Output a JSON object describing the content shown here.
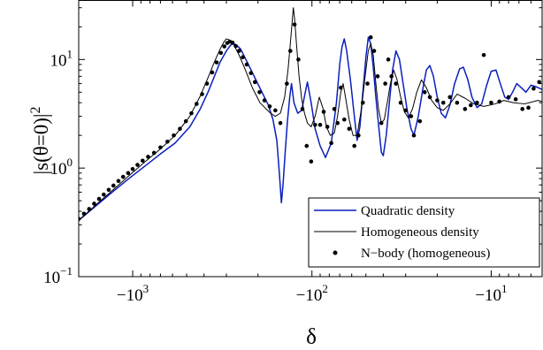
{
  "chart_data": {
    "type": "line",
    "title": "",
    "xlabel": "δ",
    "ylabel": "|s(θ=0)|",
    "ylabel_superscript": "2",
    "x_scale": "log-negative",
    "y_scale": "log",
    "xlim": [
      -2000,
      -5.2
    ],
    "ylim": [
      0.1,
      35
    ],
    "x_ticks": [
      {
        "value": -1000,
        "base": "−10",
        "exp": "3"
      },
      {
        "value": -100,
        "base": "−10",
        "exp": "2"
      },
      {
        "value": -10,
        "base": "−10",
        "exp": "1"
      }
    ],
    "y_ticks": [
      {
        "value": 0.1,
        "base": "10",
        "exp": "−1"
      },
      {
        "value": 1,
        "base": "10",
        "exp": "0"
      },
      {
        "value": 10,
        "base": "10",
        "exp": "1"
      }
    ],
    "legend_position": "bottom-right",
    "grid": false,
    "series": [
      {
        "name": "Quadratic density",
        "style": "line",
        "color": "#0a1fbd",
        "points": [
          [
            -2000,
            0.33
          ],
          [
            -1600,
            0.45
          ],
          [
            -1300,
            0.6
          ],
          [
            -1050,
            0.8
          ],
          [
            -850,
            1.05
          ],
          [
            -700,
            1.35
          ],
          [
            -580,
            1.7
          ],
          [
            -480,
            2.4
          ],
          [
            -420,
            3.5
          ],
          [
            -380,
            5.0
          ],
          [
            -350,
            7.0
          ],
          [
            -325,
            9.5
          ],
          [
            -300,
            12.0
          ],
          [
            -285,
            13.5
          ],
          [
            -275,
            14.0
          ],
          [
            -265,
            13.7
          ],
          [
            -250,
            12.5
          ],
          [
            -230,
            9.5
          ],
          [
            -210,
            7.0
          ],
          [
            -190,
            5.0
          ],
          [
            -175,
            3.8
          ],
          [
            -165,
            2.8
          ],
          [
            -157,
            1.8
          ],
          [
            -152,
            0.9
          ],
          [
            -148,
            0.48
          ],
          [
            -145,
            0.7
          ],
          [
            -141,
            1.4
          ],
          [
            -137,
            2.7
          ],
          [
            -133,
            4.5
          ],
          [
            -130,
            6.0
          ],
          [
            -126,
            4.0
          ],
          [
            -120,
            3.2
          ],
          [
            -114,
            3.4
          ],
          [
            -110,
            4.6
          ],
          [
            -106,
            6.2
          ],
          [
            -101,
            4.0
          ],
          [
            -96,
            2.3
          ],
          [
            -90,
            1.6
          ],
          [
            -84,
            1.25
          ],
          [
            -78,
            1.7
          ],
          [
            -73,
            4.0
          ],
          [
            -70,
            9.0
          ],
          [
            -68,
            13.0
          ],
          [
            -66,
            15.5
          ],
          [
            -64,
            12.0
          ],
          [
            -61,
            6.5
          ],
          [
            -58,
            3.0
          ],
          [
            -56,
            1.8
          ],
          [
            -54,
            2.4
          ],
          [
            -52,
            5.0
          ],
          [
            -50,
            10.5
          ],
          [
            -48.5,
            16.0
          ],
          [
            -47,
            14.0
          ],
          [
            -45.5,
            8.5
          ],
          [
            -44,
            4.5
          ],
          [
            -42.5,
            2.5
          ],
          [
            -41,
            1.4
          ],
          [
            -40,
            1.3
          ],
          [
            -38.5,
            2.0
          ],
          [
            -37,
            4.0
          ],
          [
            -35.5,
            8.0
          ],
          [
            -34,
            12.0
          ],
          [
            -32.5,
            10.0
          ],
          [
            -31,
            6.0
          ],
          [
            -29.5,
            3.5
          ],
          [
            -28,
            2.3
          ],
          [
            -27,
            2.0
          ],
          [
            -25.5,
            3.0
          ],
          [
            -24,
            5.5
          ],
          [
            -23,
            8.0
          ],
          [
            -22,
            8.8
          ],
          [
            -21,
            7.0
          ],
          [
            -20,
            4.5
          ],
          [
            -19,
            3.2
          ],
          [
            -18,
            2.9
          ],
          [
            -17,
            3.8
          ],
          [
            -16,
            6.0
          ],
          [
            -15,
            8.2
          ],
          [
            -14.3,
            8.5
          ],
          [
            -13.5,
            6.5
          ],
          [
            -12.8,
            4.5
          ],
          [
            -12,
            3.6
          ],
          [
            -11.3,
            3.9
          ],
          [
            -10.6,
            5.8
          ],
          [
            -10,
            7.8
          ],
          [
            -9.4,
            8.0
          ],
          [
            -8.9,
            6.0
          ],
          [
            -8.4,
            4.5
          ],
          [
            -8,
            4.3
          ],
          [
            -7.6,
            5.0
          ],
          [
            -7.2,
            6.0
          ],
          [
            -6.8,
            5.5
          ],
          [
            -6.4,
            5.0
          ],
          [
            -6,
            5.8
          ],
          [
            -5.6,
            5.6
          ],
          [
            -5.2,
            5.3
          ]
        ]
      },
      {
        "name": "Homogeneous density",
        "style": "line",
        "color": "#000000",
        "points": [
          [
            -2000,
            0.33
          ],
          [
            -1600,
            0.46
          ],
          [
            -1300,
            0.62
          ],
          [
            -1050,
            0.85
          ],
          [
            -850,
            1.15
          ],
          [
            -700,
            1.5
          ],
          [
            -580,
            2.0
          ],
          [
            -480,
            3.0
          ],
          [
            -420,
            4.6
          ],
          [
            -380,
            6.8
          ],
          [
            -350,
            9.5
          ],
          [
            -325,
            12.5
          ],
          [
            -310,
            14.5
          ],
          [
            -300,
            15.5
          ],
          [
            -290,
            15.2
          ],
          [
            -275,
            14.0
          ],
          [
            -255,
            11.0
          ],
          [
            -235,
            8.0
          ],
          [
            -215,
            5.5
          ],
          [
            -195,
            4.0
          ],
          [
            -180,
            3.5
          ],
          [
            -170,
            3.2
          ],
          [
            -160,
            3.0
          ],
          [
            -150,
            3.2
          ],
          [
            -142,
            4.5
          ],
          [
            -136,
            8.0
          ],
          [
            -132,
            14.0
          ],
          [
            -129,
            22.0
          ],
          [
            -127,
            30.0
          ],
          [
            -125,
            24.0
          ],
          [
            -122,
            14.0
          ],
          [
            -118,
            7.0
          ],
          [
            -114,
            4.3
          ],
          [
            -110,
            3.2
          ],
          [
            -106,
            2.6
          ],
          [
            -101,
            2.4
          ],
          [
            -96,
            3.0
          ],
          [
            -91,
            4.5
          ],
          [
            -87,
            3.6
          ],
          [
            -83,
            2.4
          ],
          [
            -79,
            2.0
          ],
          [
            -75,
            2.1
          ],
          [
            -72,
            3.0
          ],
          [
            -69,
            5.0
          ],
          [
            -67,
            6.0
          ],
          [
            -65,
            4.5
          ],
          [
            -62,
            2.8
          ],
          [
            -59,
            2.0
          ],
          [
            -56,
            2.0
          ],
          [
            -53,
            3.5
          ],
          [
            -50.5,
            7.0
          ],
          [
            -48.5,
            12.0
          ],
          [
            -47,
            14.0
          ],
          [
            -45.5,
            11.0
          ],
          [
            -44,
            6.0
          ],
          [
            -42.5,
            3.5
          ],
          [
            -41,
            2.6
          ],
          [
            -39.5,
            2.8
          ],
          [
            -38,
            4.0
          ],
          [
            -36.5,
            6.0
          ],
          [
            -35,
            8.0
          ],
          [
            -33.5,
            6.5
          ],
          [
            -32,
            4.5
          ],
          [
            -30.5,
            3.3
          ],
          [
            -29,
            2.9
          ],
          [
            -27.5,
            3.5
          ],
          [
            -26,
            5.0
          ],
          [
            -24.5,
            6.5
          ],
          [
            -23,
            5.5
          ],
          [
            -21.5,
            4.2
          ],
          [
            -20,
            3.6
          ],
          [
            -18.5,
            3.4
          ],
          [
            -17,
            3.9
          ],
          [
            -15.5,
            4.8
          ],
          [
            -14,
            4.4
          ],
          [
            -12.5,
            3.9
          ],
          [
            -11,
            3.7
          ],
          [
            -9.5,
            3.9
          ],
          [
            -8.5,
            4.2
          ],
          [
            -7.5,
            4.0
          ],
          [
            -6.5,
            3.9
          ],
          [
            -5.5,
            4.2
          ],
          [
            -5.2,
            4.1
          ]
        ]
      },
      {
        "name": "N−body (homogeneous)",
        "style": "points",
        "color": "#000000",
        "points": [
          [
            -2000,
            0.34
          ],
          [
            -1870,
            0.38
          ],
          [
            -1750,
            0.42
          ],
          [
            -1640,
            0.47
          ],
          [
            -1540,
            0.52
          ],
          [
            -1450,
            0.57
          ],
          [
            -1360,
            0.63
          ],
          [
            -1280,
            0.69
          ],
          [
            -1200,
            0.76
          ],
          [
            -1130,
            0.83
          ],
          [
            -1060,
            0.9
          ],
          [
            -1000,
            0.98
          ],
          [
            -940,
            1.07
          ],
          [
            -880,
            1.17
          ],
          [
            -820,
            1.27
          ],
          [
            -760,
            1.38
          ],
          [
            -700,
            1.55
          ],
          [
            -640,
            1.75
          ],
          [
            -590,
            2.0
          ],
          [
            -545,
            2.3
          ],
          [
            -505,
            2.7
          ],
          [
            -470,
            3.2
          ],
          [
            -440,
            3.9
          ],
          [
            -410,
            4.8
          ],
          [
            -385,
            6.0
          ],
          [
            -360,
            7.6
          ],
          [
            -340,
            9.4
          ],
          [
            -322,
            11.5
          ],
          [
            -308,
            13.2
          ],
          [
            -297,
            14.2
          ],
          [
            -287,
            14.6
          ],
          [
            -277,
            14.3
          ],
          [
            -266,
            13.3
          ],
          [
            -255,
            12.0
          ],
          [
            -243,
            10.5
          ],
          [
            -231,
            9.0
          ],
          [
            -219,
            7.5
          ],
          [
            -208,
            6.2
          ],
          [
            -196,
            5.0
          ],
          [
            -184,
            4.2
          ],
          [
            -172,
            3.7
          ],
          [
            -160,
            3.4
          ],
          [
            -150,
            2.6
          ],
          [
            -138,
            6.0
          ],
          [
            -132,
            12.0
          ],
          [
            -125,
            21.0
          ],
          [
            -119,
            10.0
          ],
          [
            -113,
            3.5
          ],
          [
            -107,
            1.6
          ],
          [
            -101,
            1.15
          ],
          [
            -96,
            2.5
          ],
          [
            -90,
            2.5
          ],
          [
            -86,
            3.3
          ],
          [
            -82,
            2.4
          ],
          [
            -78,
            1.7
          ],
          [
            -75,
            3.5
          ],
          [
            -72,
            2.6
          ],
          [
            -69,
            5.5
          ],
          [
            -66,
            2.8
          ],
          [
            -62,
            2.3
          ],
          [
            -58,
            1.6
          ],
          [
            -55,
            2.0
          ],
          [
            -52,
            4.0
          ],
          [
            -49,
            6.0
          ],
          [
            -47,
            16.0
          ],
          [
            -45,
            12.0
          ],
          [
            -43,
            7.0
          ],
          [
            -41,
            2.6
          ],
          [
            -39,
            6.0
          ],
          [
            -37.5,
            10.0
          ],
          [
            -36,
            7.0
          ],
          [
            -34,
            6.0
          ],
          [
            -32,
            4.0
          ],
          [
            -30,
            3.4
          ],
          [
            -28,
            3.0
          ],
          [
            -27,
            2.0
          ],
          [
            -25,
            2.7
          ],
          [
            -23.5,
            5.0
          ],
          [
            -22,
            4.5
          ],
          [
            -20,
            4.2
          ],
          [
            -18.5,
            4.0
          ],
          [
            -17,
            4.5
          ],
          [
            -15.5,
            4.0
          ],
          [
            -14,
            3.5
          ],
          [
            -13,
            3.8
          ],
          [
            -12,
            4.0
          ],
          [
            -11,
            11.0
          ],
          [
            -10,
            4.0
          ],
          [
            -9,
            4.1
          ],
          [
            -8,
            4.5
          ],
          [
            -7.3,
            4.3
          ],
          [
            -6.7,
            3.5
          ],
          [
            -6.2,
            3.6
          ],
          [
            -5.8,
            5.4
          ],
          [
            -5.4,
            6.2
          ]
        ]
      }
    ]
  }
}
